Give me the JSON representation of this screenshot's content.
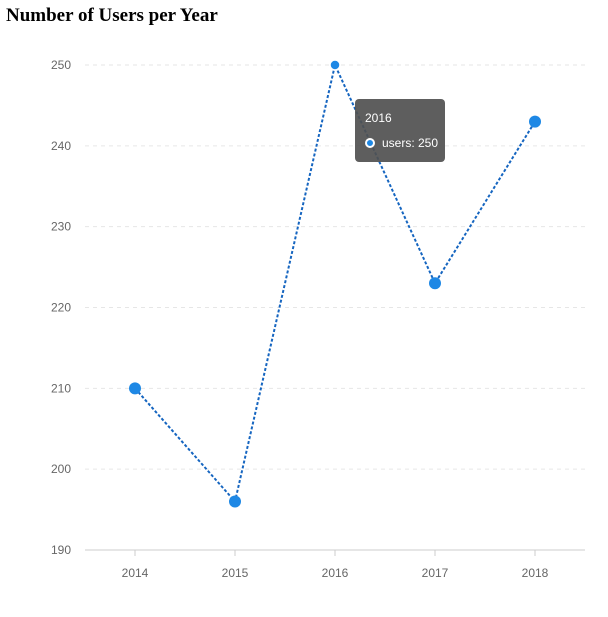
{
  "chart_data": {
    "type": "line",
    "title": "Number of Users per Year",
    "xlabel": "",
    "ylabel": "",
    "categories": [
      "2014",
      "2015",
      "2016",
      "2017",
      "2018"
    ],
    "series": [
      {
        "name": "users",
        "values": [
          210,
          196,
          250,
          223,
          243
        ]
      }
    ],
    "ylim": [
      190,
      250
    ],
    "yticks": [
      190,
      200,
      210,
      220,
      230,
      240,
      250
    ],
    "grid": true,
    "line_style": "dashed",
    "colors": {
      "line": "#1565c0",
      "marker": "#1e88e5",
      "grid": "#e6e6e6",
      "axis": "#cccccc"
    }
  },
  "tooltip": {
    "title": "2016",
    "label": "users: 250"
  }
}
